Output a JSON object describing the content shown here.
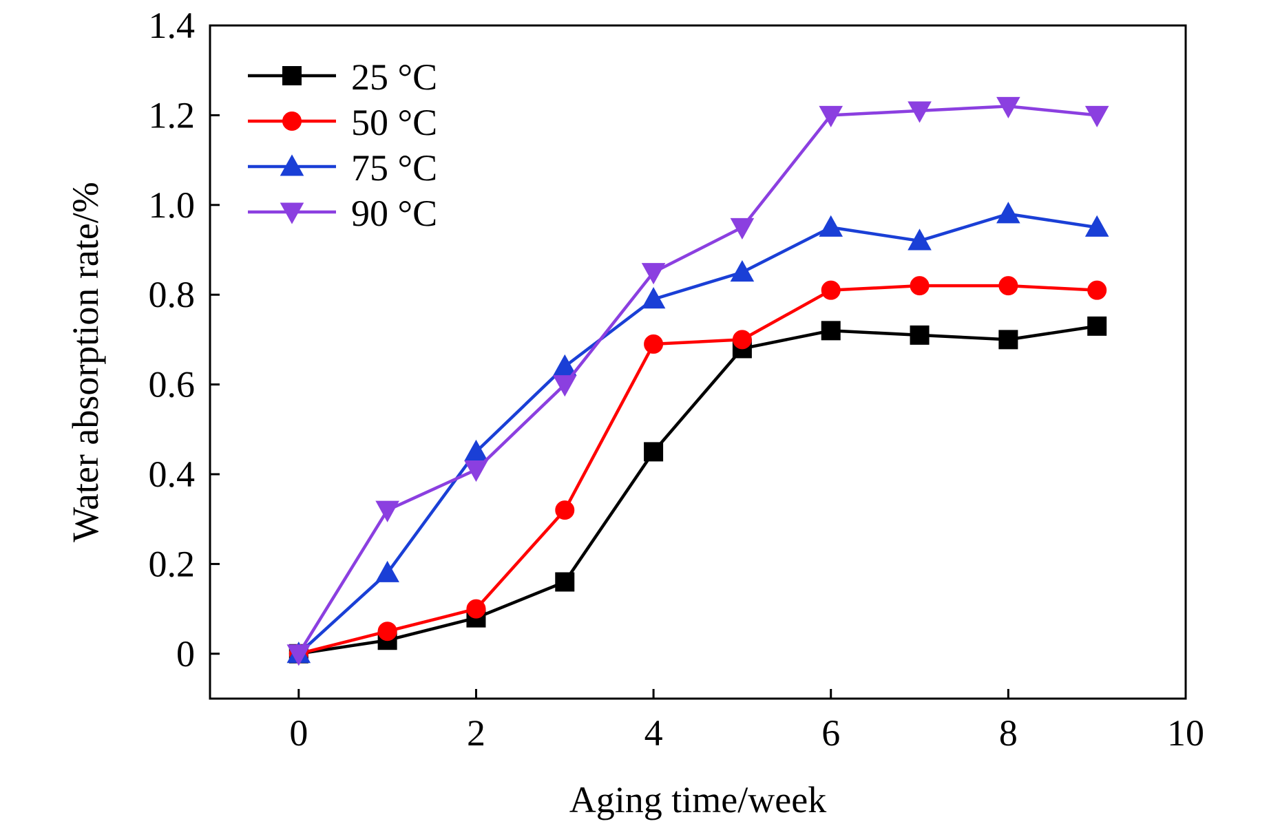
{
  "chart_data": {
    "type": "line",
    "title": "",
    "xlabel": "Aging time/week",
    "ylabel": "Water absorption rate/%",
    "xlim": [
      -1,
      10
    ],
    "ylim": [
      -0.1,
      1.4
    ],
    "x_ticks": [
      0,
      2,
      4,
      6,
      8,
      10
    ],
    "y_ticks": [
      0,
      0.2,
      0.4,
      0.6,
      0.8,
      1.0,
      1.2,
      1.4
    ],
    "x_tick_labels": [
      "0",
      "2",
      "4",
      "6",
      "8",
      "10"
    ],
    "y_tick_labels": [
      "0",
      "0.2",
      "0.4",
      "0.6",
      "0.8",
      "1.0",
      "1.2",
      "1.4"
    ],
    "grid": false,
    "legend_position": "top-left",
    "x": [
      0,
      1,
      2,
      3,
      4,
      5,
      6,
      7,
      8,
      9
    ],
    "series": [
      {
        "name": "25 °C",
        "color": "#000000",
        "marker": "square",
        "values": [
          0,
          0.03,
          0.08,
          0.16,
          0.45,
          0.68,
          0.72,
          0.71,
          0.7,
          0.73
        ]
      },
      {
        "name": "50 °C",
        "color": "#ff0000",
        "marker": "circle",
        "values": [
          0,
          0.05,
          0.1,
          0.32,
          0.69,
          0.7,
          0.81,
          0.82,
          0.82,
          0.81
        ]
      },
      {
        "name": "75 °C",
        "color": "#1a3fd6",
        "marker": "triangle-up",
        "values": [
          0,
          0.18,
          0.45,
          0.64,
          0.79,
          0.85,
          0.95,
          0.92,
          0.98,
          0.95
        ]
      },
      {
        "name": "90 °C",
        "color": "#8b3fe0",
        "marker": "triangle-down",
        "values": [
          0,
          0.32,
          0.41,
          0.6,
          0.85,
          0.95,
          1.2,
          1.21,
          1.22,
          1.2
        ]
      }
    ]
  }
}
